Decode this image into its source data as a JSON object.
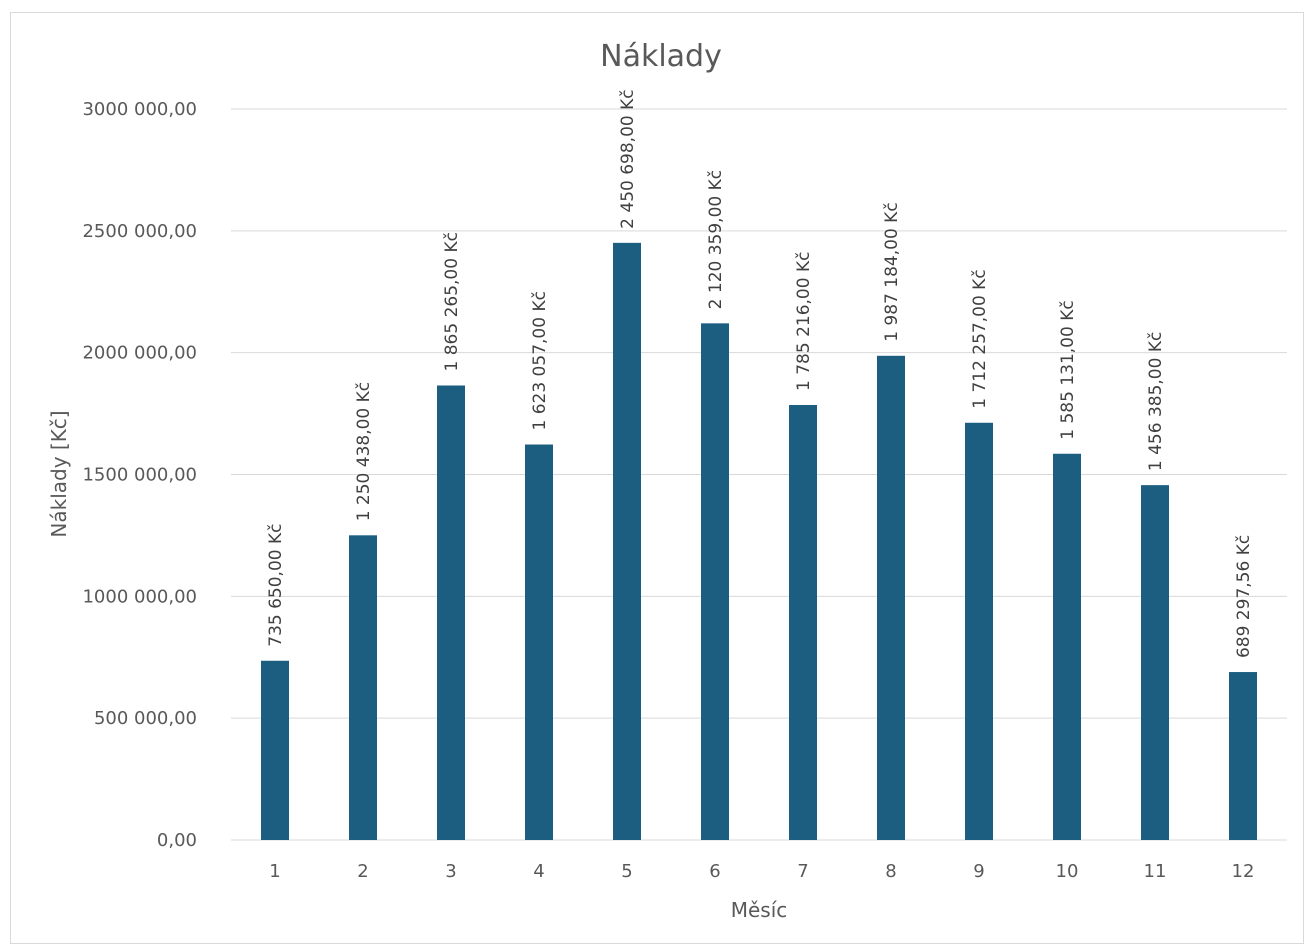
{
  "chart_data": {
    "type": "bar",
    "title": "Náklady",
    "xlabel": "Měsíc",
    "ylabel": "Náklady [Kč]",
    "categories": [
      "1",
      "2",
      "3",
      "4",
      "5",
      "6",
      "7",
      "8",
      "9",
      "10",
      "11",
      "12"
    ],
    "values": [
      735650.0,
      1250438.0,
      1865265.0,
      1623057.0,
      2450698.0,
      2120359.0,
      1785216.0,
      1987184.0,
      1712257.0,
      1585131.0,
      1456385.0,
      689297.56
    ],
    "data_labels": [
      "735 650,00 Kč",
      "1 250 438,00 Kč",
      "1 865 265,00 Kč",
      "1 623 057,00 Kč",
      "2 450 698,00 Kč",
      "2 120 359,00 Kč",
      "1 785 216,00 Kč",
      "1 987 184,00 Kč",
      "1 712 257,00 Kč",
      "1 585 131,00 Kč",
      "1 456 385,00 Kč",
      "689 297,56 Kč"
    ],
    "ylim": [
      0,
      3000000
    ],
    "yticks": [
      0,
      500000,
      1000000,
      1500000,
      2000000,
      2500000,
      3000000
    ],
    "ytick_labels": [
      "0,00",
      "500 000,00",
      "1000 000,00",
      "1500 000,00",
      "2000 000,00",
      "2500 000,00",
      "3000 000,00"
    ],
    "grid": true,
    "legend": "none",
    "bar_color": "#1b5e80"
  }
}
